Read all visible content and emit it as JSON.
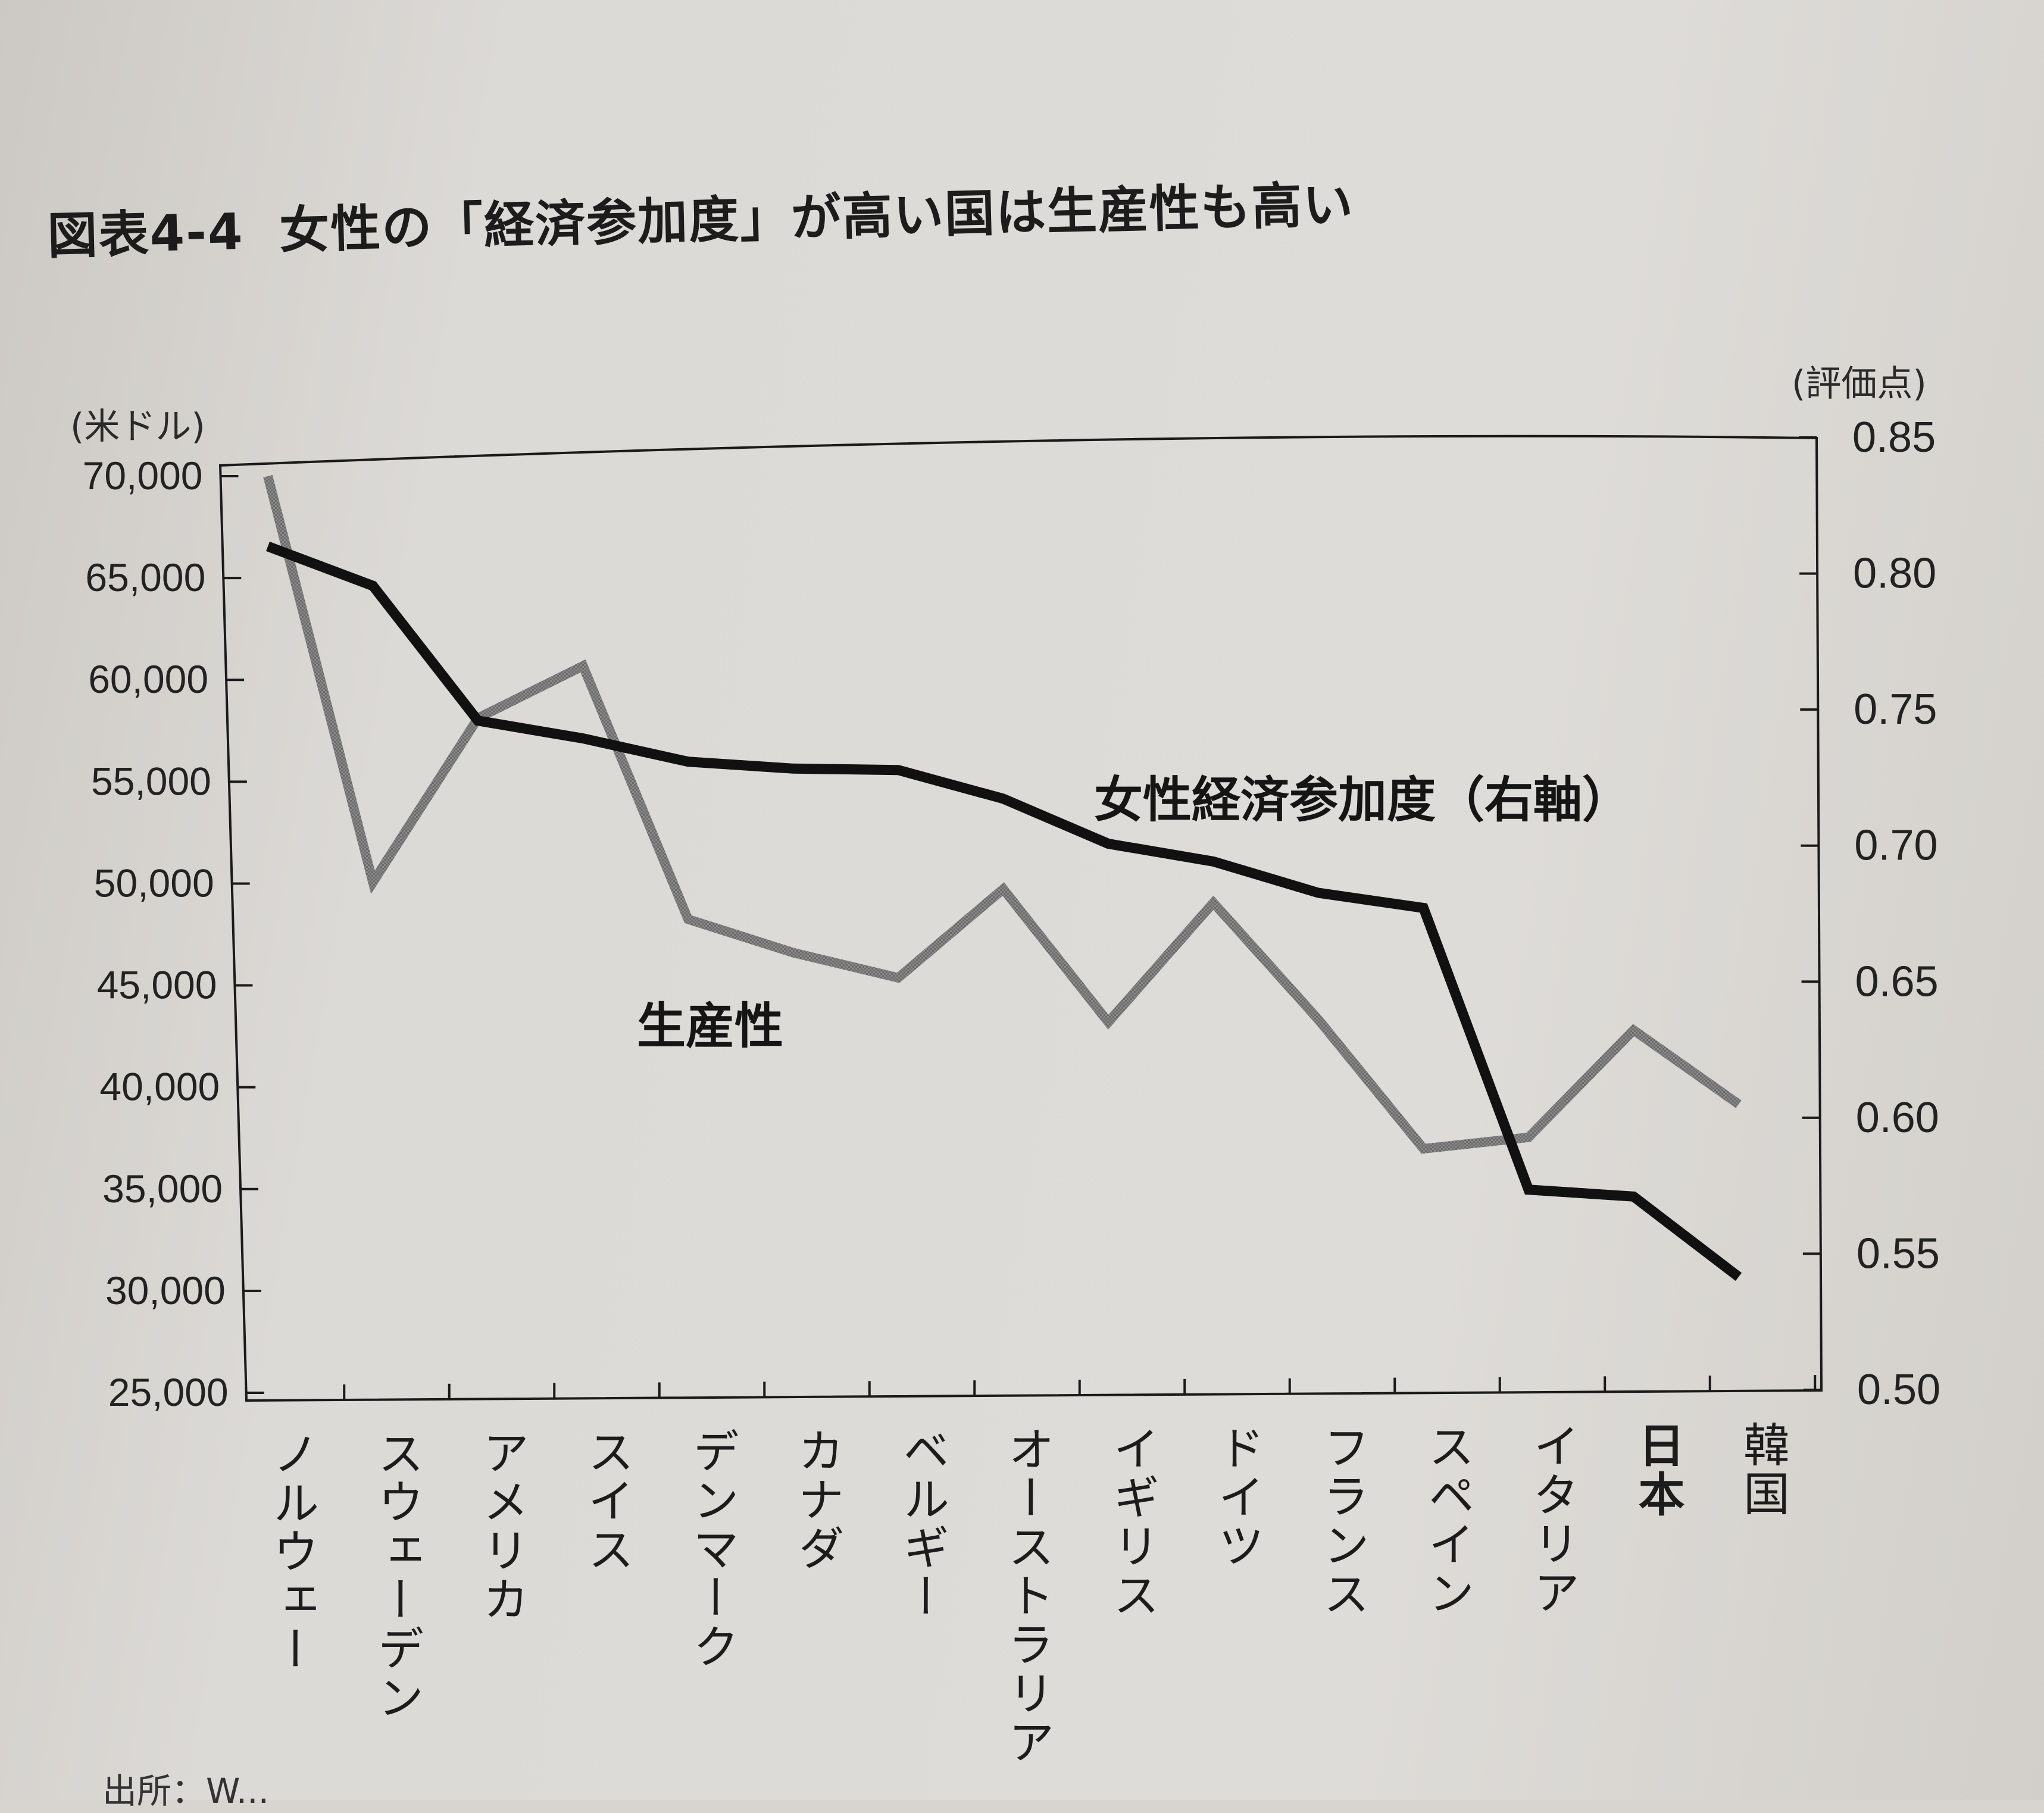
{
  "title": {
    "figure_number": "図表4-4",
    "text": "女性の「経済参加度」が高い国は生産性も高い"
  },
  "left_axis_unit": "(米ドル)",
  "right_axis_unit": "(評価点)",
  "source_note": "出所：W...",
  "chart_data": {
    "type": "line",
    "title": "女性の「経済参加度」が高い国は生産性も高い",
    "categories": [
      "ノルウェー",
      "スウェーデン",
      "アメリカ",
      "スイス",
      "デンマーク",
      "カナダ",
      "ベルギー",
      "オーストラリア",
      "イギリス",
      "ドイツ",
      "フランス",
      "スペイン",
      "イタリア",
      "日本",
      "韓国"
    ],
    "highlight_category": "日本",
    "y_left": {
      "unit": "(米ドル)",
      "ylim": [
        25000,
        70000
      ],
      "ticks": [
        "70,000",
        "65,000",
        "60,000",
        "55,000",
        "50,000",
        "45,000",
        "40,000",
        "35,000",
        "30,000",
        "25,000"
      ],
      "tick_values": [
        70000,
        65000,
        60000,
        55000,
        50000,
        45000,
        40000,
        35000,
        30000,
        25000
      ]
    },
    "y_right": {
      "unit": "(評価点)",
      "ylim": [
        0.5,
        0.85
      ],
      "ticks": [
        "0.85",
        "0.80",
        "0.75",
        "0.70",
        "0.65",
        "0.60",
        "0.55",
        "0.50"
      ],
      "tick_values": [
        0.85,
        0.8,
        0.75,
        0.7,
        0.65,
        0.6,
        0.55,
        0.5
      ]
    },
    "series": [
      {
        "name": "生産性",
        "axis": "left",
        "color": "#7d7d7d",
        "values": [
          70000,
          50000,
          58000,
          60500,
          48000,
          46300,
          45000,
          49300,
          42700,
          48500,
          42700,
          36300,
          36800,
          42000,
          38300
        ]
      },
      {
        "name": "女性経済参加度（右軸）",
        "axis": "right",
        "color": "#111111",
        "values": [
          0.81,
          0.795,
          0.745,
          0.738,
          0.729,
          0.726,
          0.725,
          0.714,
          0.697,
          0.69,
          0.678,
          0.672,
          0.568,
          0.565,
          0.535
        ]
      }
    ],
    "grid": false,
    "legend": "inline labels"
  }
}
